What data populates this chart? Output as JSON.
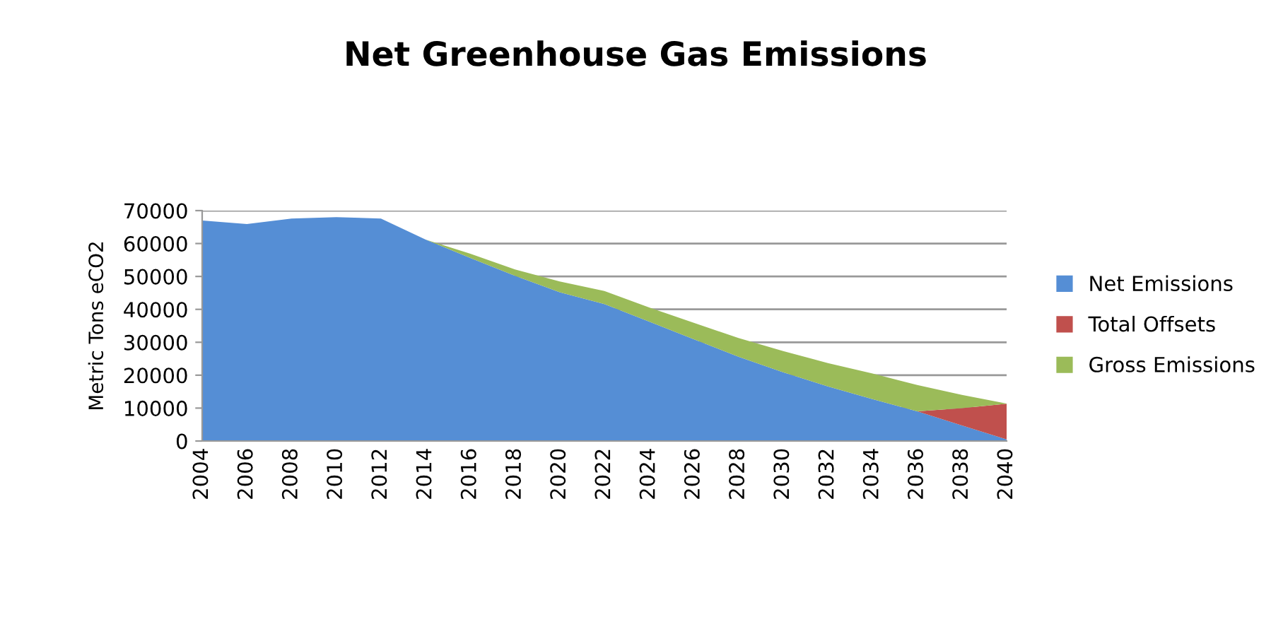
{
  "chart_data": {
    "type": "area",
    "title": "Net Greenhouse Gas Emissions",
    "ylabel": "Metric Tons eCO2",
    "stacked": true,
    "categories": [
      "2004",
      "2006",
      "2008",
      "2010",
      "2012",
      "2014",
      "2016",
      "2018",
      "2020",
      "2022",
      "2024",
      "2026",
      "2028",
      "2030",
      "2032",
      "2034",
      "2036",
      "2038",
      "2040"
    ],
    "series": [
      {
        "name": "Net Emissions",
        "color": "#558ed5",
        "values": [
          67000,
          65900,
          67600,
          68000,
          67600,
          61200,
          55600,
          50200,
          45200,
          41600,
          36300,
          30900,
          25600,
          20900,
          16600,
          12700,
          9000,
          4700,
          500
        ]
      },
      {
        "name": "Total Offsets",
        "color": "#c0504d",
        "values": [
          0,
          0,
          0,
          0,
          0,
          0,
          0,
          0,
          0,
          0,
          0,
          0,
          0,
          0,
          0,
          0,
          0,
          5300,
          10800
        ]
      },
      {
        "name": "Gross Emissions",
        "color": "#9bbb59",
        "values": [
          0,
          0,
          0,
          0,
          0,
          0,
          1300,
          1900,
          3300,
          4000,
          4300,
          5000,
          5700,
          6400,
          7100,
          7800,
          8000,
          4000,
          100
        ]
      }
    ],
    "ylim": [
      0,
      70000
    ],
    "yticks": [
      0,
      10000,
      20000,
      30000,
      40000,
      50000,
      60000,
      70000
    ],
    "grid": "y",
    "legend": "right"
  }
}
